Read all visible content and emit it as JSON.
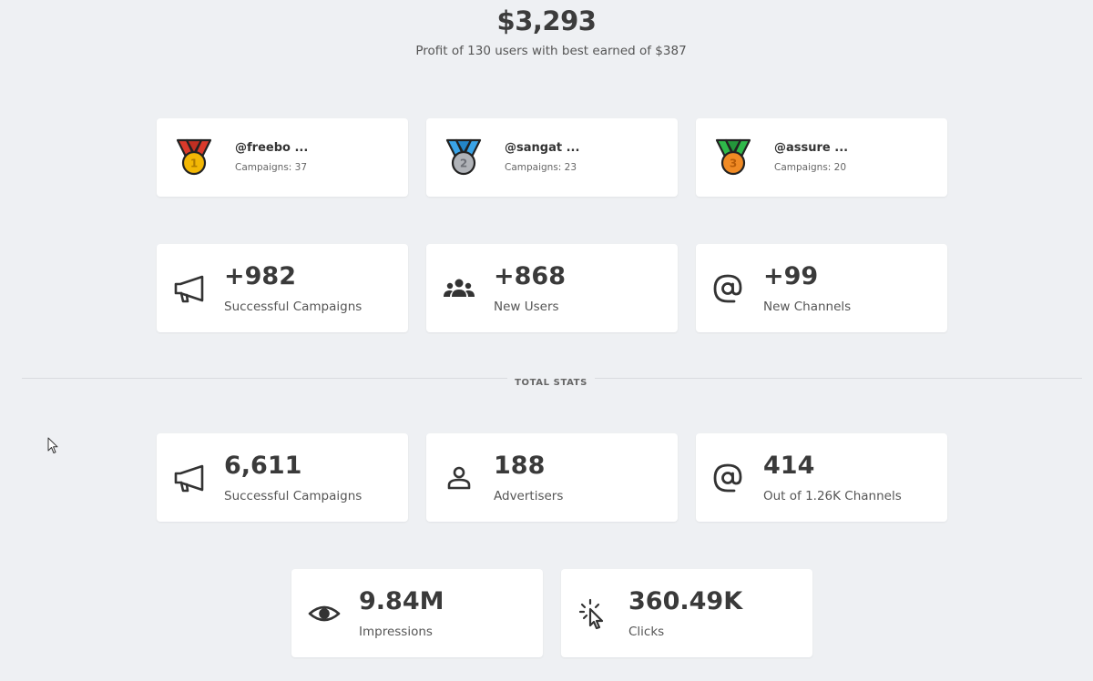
{
  "summary": {
    "total_profit": "$3,293",
    "subtitle": "Profit of 130 users with best earned of $387"
  },
  "leaders": [
    {
      "rank": 1,
      "name": "@freebo ...",
      "campaigns": "Campaigns: 37",
      "medal_color": "#f2b705",
      "ribbon_color": "#d93a2b",
      "icon": "gold-medal-icon"
    },
    {
      "rank": 2,
      "name": "@sangat ...",
      "campaigns": "Campaigns: 23",
      "medal_color": "#b0b3b8",
      "ribbon_color": "#3aa4e8",
      "icon": "silver-medal-icon"
    },
    {
      "rank": 3,
      "name": "@assure ...",
      "campaigns": "Campaigns: 20",
      "medal_color": "#f08a24",
      "ribbon_color": "#2fb84a",
      "icon": "bronze-medal-icon"
    }
  ],
  "recent_stats": [
    {
      "value": "+982",
      "label": "Successful Campaigns",
      "icon": "megaphone-icon"
    },
    {
      "value": "+868",
      "label": "New Users",
      "icon": "users-group-icon"
    },
    {
      "value": "+99",
      "label": "New Channels",
      "icon": "at-sign-icon"
    }
  ],
  "divider_label": "TOTAL STATS",
  "total_stats": [
    {
      "value": "6,611",
      "label": "Successful Campaigns",
      "icon": "megaphone-icon"
    },
    {
      "value": "188",
      "label": "Advertisers",
      "icon": "person-icon"
    },
    {
      "value": "414",
      "label": "Out of 1.26K Channels",
      "icon": "at-sign-icon"
    }
  ],
  "engagement_stats": [
    {
      "value": "9.84M",
      "label": "Impressions",
      "icon": "eye-icon"
    },
    {
      "value": "360.49K",
      "label": "Clicks",
      "icon": "click-cursor-icon"
    }
  ]
}
